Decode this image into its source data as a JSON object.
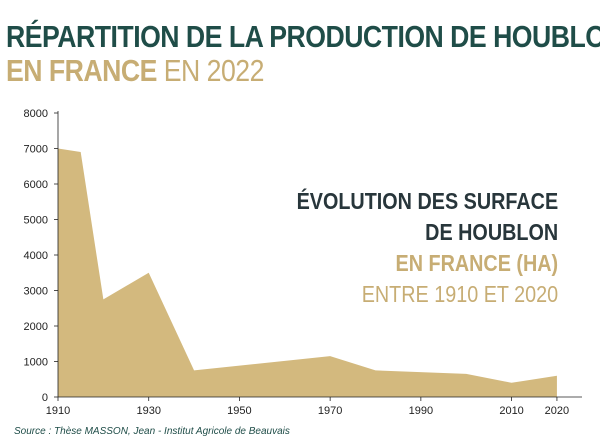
{
  "header": {
    "title_line1": "RÉPARTITION DE LA PRODUCTION DE HOUBLON",
    "title_line2_bold": "EN FRANCE",
    "title_line2_light": "EN 2022"
  },
  "overlay": {
    "line1": "ÉVOLUTION DES SURFACE",
    "line2": "DE HOUBLON",
    "line3": "EN FRANCE (HA)",
    "line4": "ENTRE 1910 ET 2020"
  },
  "source": "Source : Thèse MASSON, Jean - Institut Agricole de Beauvais",
  "colors": {
    "area": "#d3b97e",
    "title_dark": "#1f4d48",
    "gold": "#c7ad74",
    "overlay_dark": "#28363b"
  },
  "chart_data": {
    "type": "area",
    "title": "",
    "xlabel": "",
    "ylabel": "",
    "xlim": [
      1910,
      2022
    ],
    "ylim": [
      0,
      8000
    ],
    "x_ticks": [
      1910,
      1930,
      1950,
      1970,
      1990,
      2010,
      2020
    ],
    "y_ticks": [
      0,
      1000,
      2000,
      3000,
      4000,
      5000,
      6000,
      7000,
      8000
    ],
    "grid": false,
    "series": [
      {
        "x": [
          1910,
          1915,
          1920,
          1930,
          1940,
          1970,
          1980,
          2000,
          2010,
          2020
        ],
        "y": [
          7000,
          6900,
          2750,
          3500,
          750,
          1150,
          750,
          650,
          400,
          600
        ]
      }
    ]
  }
}
